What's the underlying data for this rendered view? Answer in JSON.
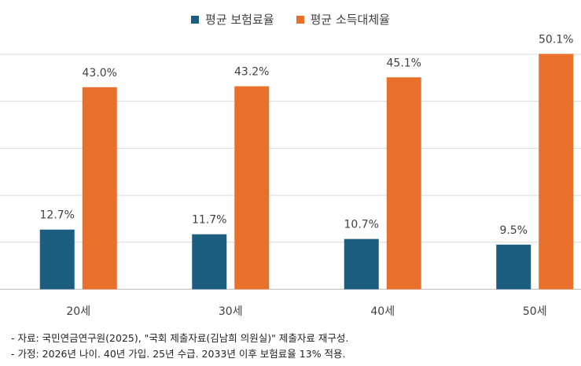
{
  "chart_data": {
    "type": "bar",
    "categories": [
      "20세",
      "30세",
      "40세",
      "50세"
    ],
    "series": [
      {
        "name": "평균 보험료율",
        "color": "#1b5e80",
        "values": [
          12.7,
          11.7,
          10.7,
          9.5
        ],
        "labels": [
          "12.7%",
          "11.7%",
          "10.7%",
          "9.5%"
        ]
      },
      {
        "name": "평균 소득대체율",
        "color": "#e8702a",
        "values": [
          43.0,
          43.2,
          45.1,
          50.1
        ],
        "labels": [
          "43.0%",
          "43.2%",
          "45.1%",
          "50.1%"
        ]
      }
    ],
    "ylim": [
      0,
      50
    ],
    "grid": true,
    "legend_position": "top"
  },
  "notes": [
    "- 자료: 국민연금연구원(2025), \"국회 제출자료(김남희 의원실)\" 제출자료 재구성.",
    "- 가정: 2026년 나이. 40년 가입. 25년 수급. 2033년 이후 보험료율 13% 적용."
  ]
}
